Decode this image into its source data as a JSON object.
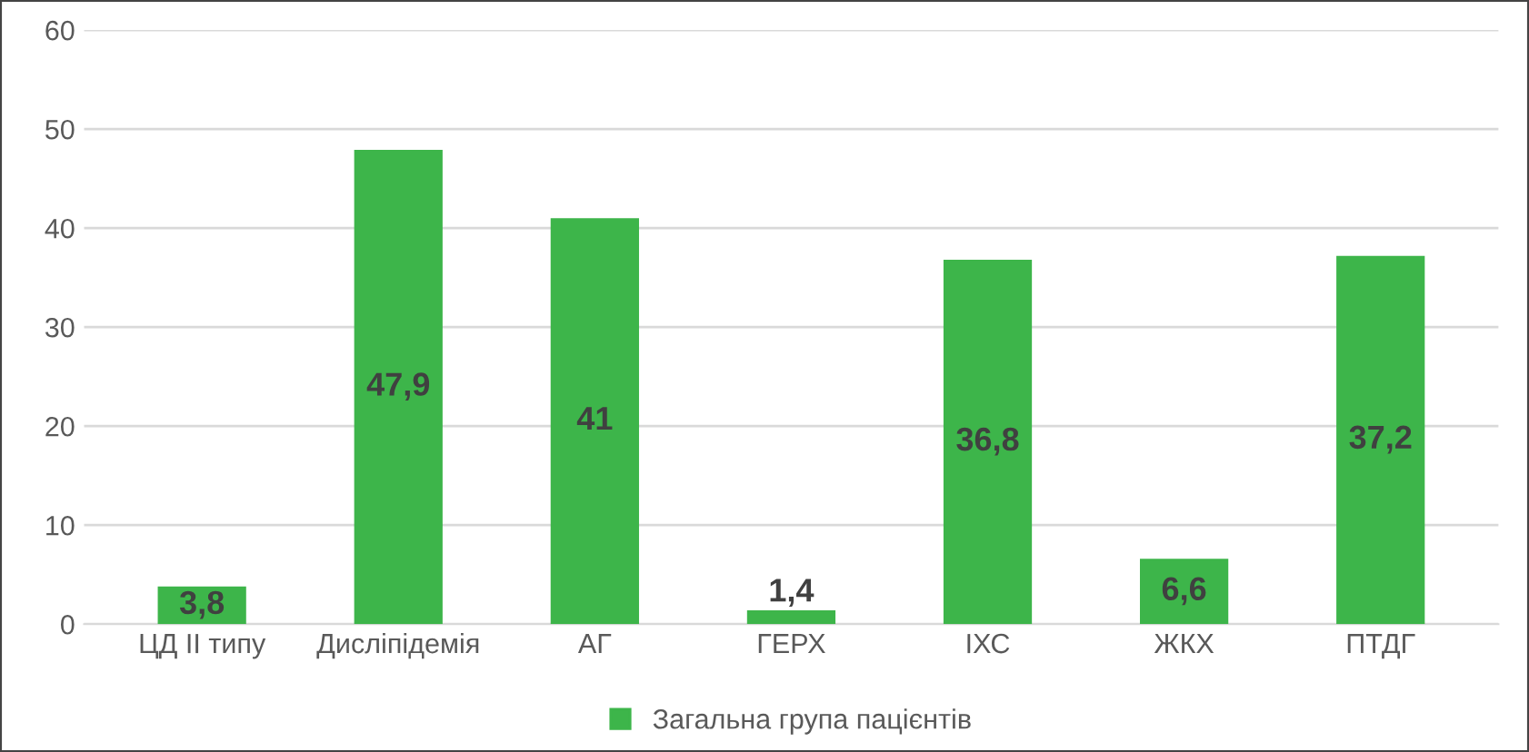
{
  "chart_data": {
    "type": "bar",
    "categories": [
      "ЦД ІІ типу",
      "Дисліпідемія",
      "АГ",
      "ГЕРХ",
      "ІХС",
      "ЖКХ",
      "ПТДГ"
    ],
    "series": [
      {
        "name": "Загальна група пацієнтів",
        "color": "#3db54a",
        "values": [
          3.8,
          47.9,
          41,
          1.4,
          36.8,
          6.6,
          37.2
        ],
        "value_labels": [
          "3,8",
          "47,9",
          "41",
          "1,4",
          "36,8",
          "6,6",
          "37,2"
        ]
      }
    ],
    "ylim": [
      0,
      60
    ],
    "yticks": [
      0,
      10,
      20,
      30,
      40,
      50,
      60
    ],
    "grid": "y",
    "legend": "bottom"
  }
}
